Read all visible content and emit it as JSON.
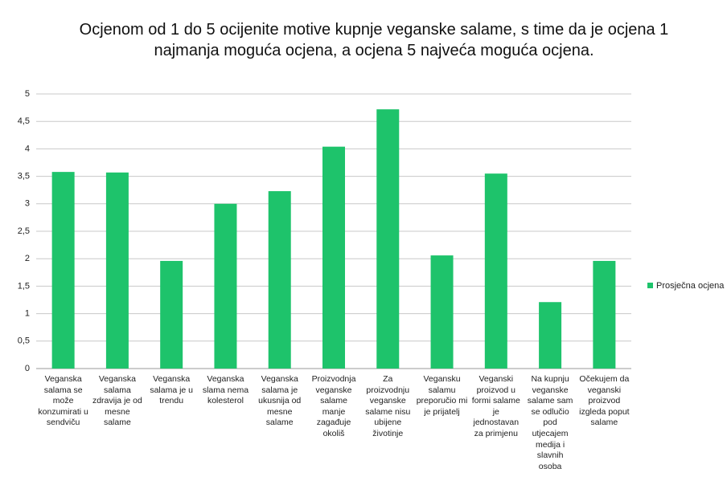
{
  "chart_data": {
    "type": "bar",
    "title": "Ocjenom od 1 do 5 ocijenite motive kupnje veganske salame, s time da je ocjena 1 najmanja moguća ocjena, a  ocjena 5 najveća moguća ocjena.",
    "categories": [
      "Veganska salama se može konzumirati u sendviču",
      "Veganska salama zdravija je od mesne salame",
      "Veganska salama je u trendu",
      "Veganska slama nema kolesterol",
      "Veganska salama je ukusnija od mesne salame",
      "Proizvodnja veganske salame manje zagađuje okoliš",
      "Za proizvodnju veganske salame nisu ubijene životinje",
      "Vegansku salamu preporučio mi je prijatelj",
      "Veganski proizvod u formi salame je jednostavan za primjenu",
      "Na kupnju veganske salame sam se odlučio pod utjecajem medija i slavnih osoba",
      "Očekujem da veganski proizvod izgleda poput salame"
    ],
    "series": [
      {
        "name": "Prosječna ocjena",
        "color": "#1ec36b",
        "values": [
          3.58,
          3.57,
          1.96,
          3.0,
          3.23,
          4.04,
          4.72,
          2.06,
          3.55,
          1.21,
          1.96
        ]
      }
    ],
    "ylim": [
      0,
      5
    ],
    "yticks": [
      0,
      {
        "value": 0.5,
        "label": "0,5"
      },
      1,
      {
        "value": 1.5,
        "label": "1,5"
      },
      2,
      {
        "value": 2.5,
        "label": "2,5"
      },
      3,
      {
        "value": 3.5,
        "label": "3,5"
      },
      4,
      {
        "value": 4.5,
        "label": "4,5"
      },
      5
    ],
    "grid": true,
    "legend": "right"
  }
}
